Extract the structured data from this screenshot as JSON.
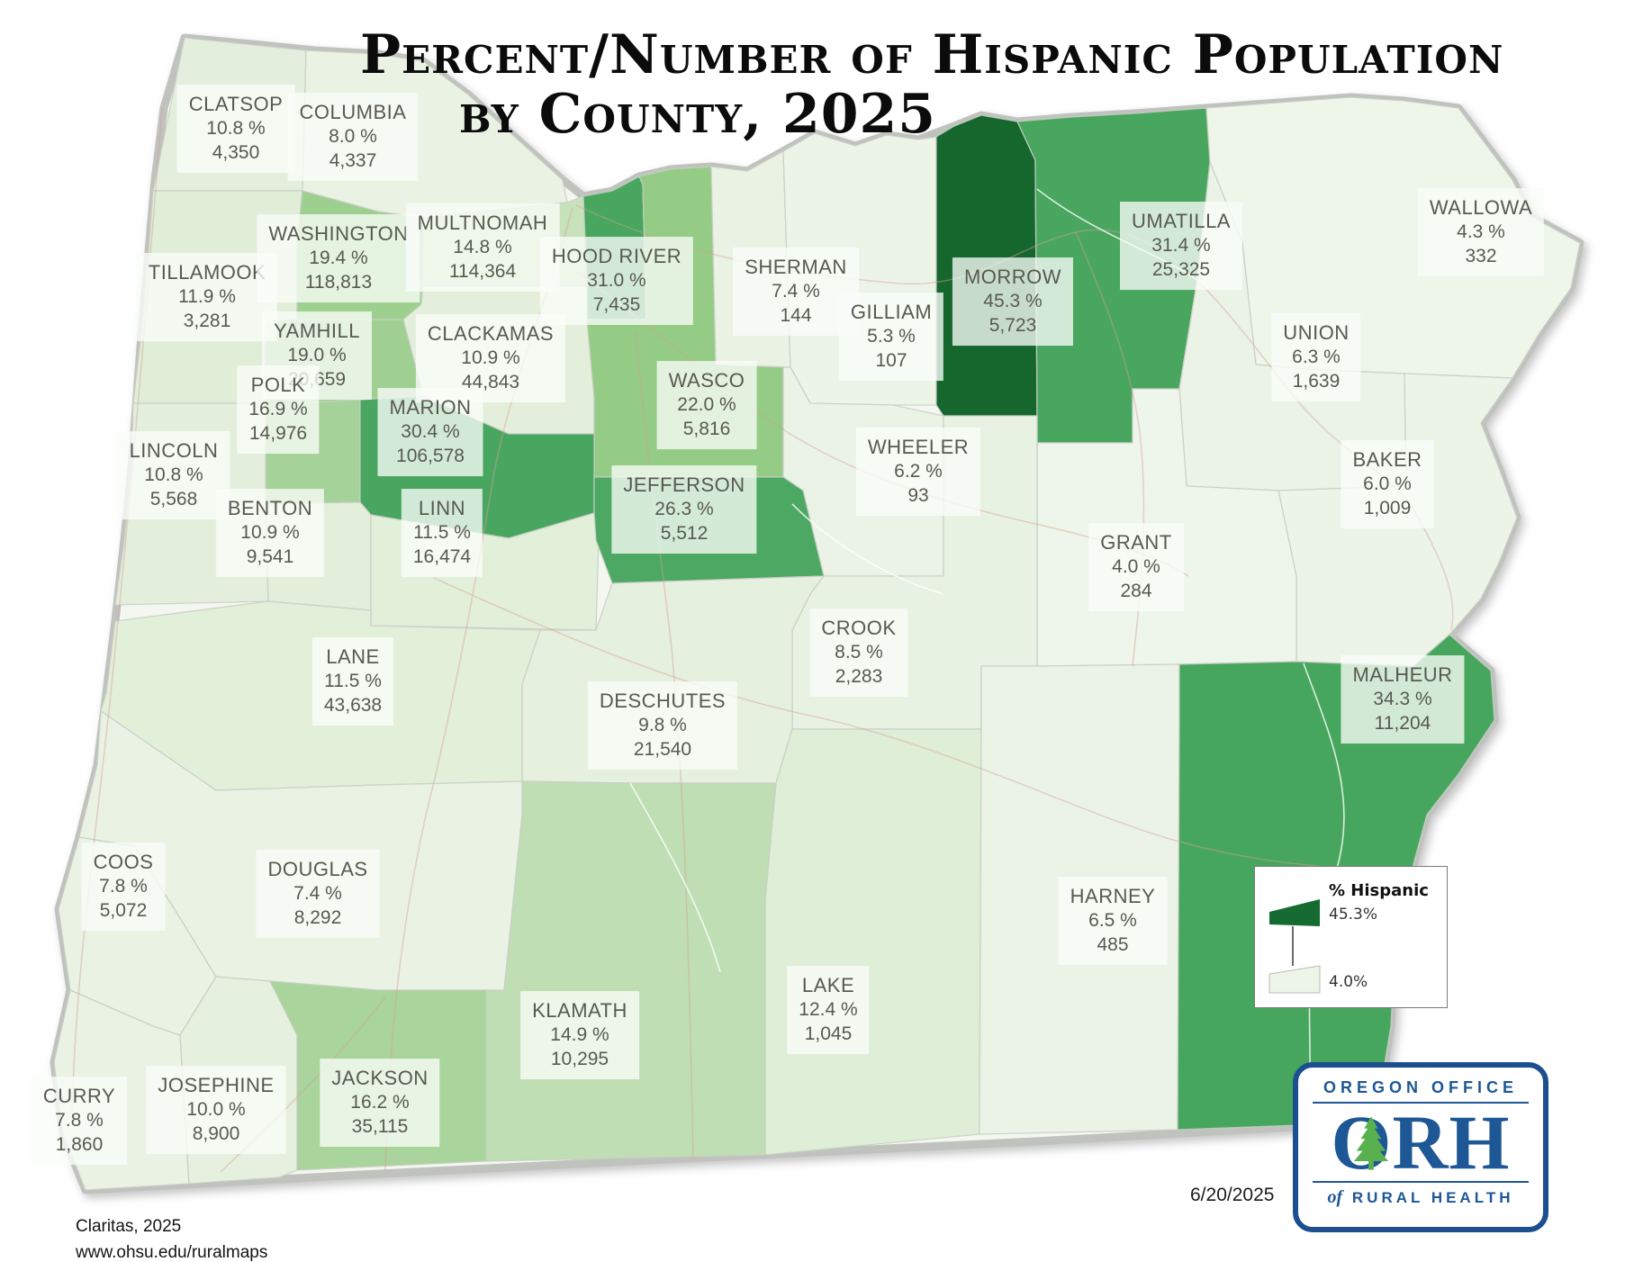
{
  "title": {
    "line1": "Percent/Number of Hispanic Population",
    "line2": "by County, 2025"
  },
  "legend": {
    "title": "% Hispanic",
    "max_label": "45.3%",
    "min_label": "4.0%",
    "max_color": "#156b31",
    "min_color": "#edf5e9"
  },
  "date": "6/20/2025",
  "credits": {
    "line1": "Claritas, 2025",
    "line2": "www.ohsu.edu/ruralmaps"
  },
  "logo": {
    "top": "OREGON OFFICE",
    "acronym": "ORH",
    "bottom_of": "of",
    "bottom_rest": "RURAL HEALTH",
    "blue": "#1d5796",
    "green": "#58b14e"
  },
  "colors": {
    "scale_stops": [
      [
        4,
        "#eef5ea"
      ],
      [
        8,
        "#e9f2e3"
      ],
      [
        11,
        "#e3efdb"
      ],
      [
        12.4,
        "#dfeed6"
      ],
      [
        14.8,
        "#c8e2bc"
      ],
      [
        15.1,
        "#aed7a1"
      ],
      [
        17,
        "#a5d297"
      ],
      [
        19.5,
        "#9dcf8f"
      ],
      [
        22,
        "#94cb85"
      ],
      [
        25.5,
        "#62b26d"
      ],
      [
        26.3,
        "#4ca862"
      ],
      [
        31.4,
        "#48a65f"
      ],
      [
        34.3,
        "#47a65e"
      ],
      [
        45.3,
        "#15672e"
      ]
    ],
    "state_border": "#bfc2bd",
    "county_border": "#c9cec5",
    "label_bg": "rgba(250,253,248,0.78)",
    "label_text": "#585a50",
    "road": "#d79f96"
  },
  "counties": [
    {
      "id": "clatsop",
      "name": "CLATSOP",
      "pct": "10.8 %",
      "pop": "4,350",
      "value": 10.8
    },
    {
      "id": "columbia",
      "name": "COLUMBIA",
      "pct": "8.0 %",
      "pop": "4,337",
      "value": 8.0
    },
    {
      "id": "tillamook",
      "name": "TILLAMOOK",
      "pct": "11.9 %",
      "pop": "3,281",
      "value": 11.9
    },
    {
      "id": "washington",
      "name": "WASHINGTON",
      "pct": "19.4 %",
      "pop": "118,813",
      "value": 19.4
    },
    {
      "id": "multnomah",
      "name": "MULTNOMAH",
      "pct": "14.8 %",
      "pop": "114,364",
      "value": 14.8
    },
    {
      "id": "hood_river",
      "name": "HOOD RIVER",
      "pct": "31.0 %",
      "pop": "7,435",
      "value": 31.0
    },
    {
      "id": "clackamas",
      "name": "CLACKAMAS",
      "pct": "10.9 %",
      "pop": "44,843",
      "value": 10.9
    },
    {
      "id": "yamhill",
      "name": "YAMHILL",
      "pct": "19.0 %",
      "pop": "20,659",
      "value": 19.0
    },
    {
      "id": "wasco",
      "name": "WASCO",
      "pct": "22.0 %",
      "pop": "5,816",
      "value": 22.0
    },
    {
      "id": "sherman",
      "name": "SHERMAN",
      "pct": "7.4 %",
      "pop": "144",
      "value": 7.4
    },
    {
      "id": "gilliam",
      "name": "GILLIAM",
      "pct": "5.3 %",
      "pop": "107",
      "value": 5.3
    },
    {
      "id": "morrow",
      "name": "MORROW",
      "pct": "45.3 %",
      "pop": "5,723",
      "value": 45.3
    },
    {
      "id": "umatilla",
      "name": "UMATILLA",
      "pct": "31.4 %",
      "pop": "25,325",
      "value": 31.4
    },
    {
      "id": "wallowa",
      "name": "WALLOWA",
      "pct": "4.3 %",
      "pop": "332",
      "value": 4.3
    },
    {
      "id": "union",
      "name": "UNION",
      "pct": "6.3 %",
      "pop": "1,639",
      "value": 6.3
    },
    {
      "id": "baker",
      "name": "BAKER",
      "pct": "6.0 %",
      "pop": "1,009",
      "value": 6.0
    },
    {
      "id": "grant",
      "name": "GRANT",
      "pct": "4.0 %",
      "pop": "284",
      "value": 4.0
    },
    {
      "id": "wheeler",
      "name": "WHEELER",
      "pct": "6.2 %",
      "pop": "93",
      "value": 6.2
    },
    {
      "id": "polk",
      "name": "POLK",
      "pct": "16.9 %",
      "pop": "14,976",
      "value": 16.9
    },
    {
      "id": "marion",
      "name": "MARION",
      "pct": "30.4 %",
      "pop": "106,578",
      "value": 30.4
    },
    {
      "id": "lincoln",
      "name": "LINCOLN",
      "pct": "10.8 %",
      "pop": "5,568",
      "value": 10.8
    },
    {
      "id": "benton",
      "name": "BENTON",
      "pct": "10.9 %",
      "pop": "9,541",
      "value": 10.9
    },
    {
      "id": "linn",
      "name": "LINN",
      "pct": "11.5 %",
      "pop": "16,474",
      "value": 11.5
    },
    {
      "id": "jefferson",
      "name": "JEFFERSON",
      "pct": "26.3 %",
      "pop": "5,512",
      "value": 26.3
    },
    {
      "id": "crook",
      "name": "CROOK",
      "pct": "8.5 %",
      "pop": "2,283",
      "value": 8.5
    },
    {
      "id": "deschutes",
      "name": "DESCHUTES",
      "pct": "9.8 %",
      "pop": "21,540",
      "value": 9.8
    },
    {
      "id": "lane",
      "name": "LANE",
      "pct": "11.5 %",
      "pop": "43,638",
      "value": 11.5
    },
    {
      "id": "coos",
      "name": "COOS",
      "pct": "7.8 %",
      "pop": "5,072",
      "value": 7.8
    },
    {
      "id": "douglas",
      "name": "DOUGLAS",
      "pct": "7.4 %",
      "pop": "8,292",
      "value": 7.4
    },
    {
      "id": "curry",
      "name": "CURRY",
      "pct": "7.8 %",
      "pop": "1,860",
      "value": 7.8
    },
    {
      "id": "josephine",
      "name": "JOSEPHINE",
      "pct": "10.0 %",
      "pop": "8,900",
      "value": 10.0
    },
    {
      "id": "jackson",
      "name": "JACKSON",
      "pct": "16.2 %",
      "pop": "35,115",
      "value": 16.2
    },
    {
      "id": "klamath",
      "name": "KLAMATH",
      "pct": "14.9 %",
      "pop": "10,295",
      "value": 14.9
    },
    {
      "id": "lake",
      "name": "LAKE",
      "pct": "12.4 %",
      "pop": "1,045",
      "value": 12.4
    },
    {
      "id": "harney",
      "name": "HARNEY",
      "pct": "6.5 %",
      "pop": "485",
      "value": 6.5
    },
    {
      "id": "malheur",
      "name": "MALHEUR",
      "pct": "34.3 %",
      "pop": "11,204",
      "value": 34.3
    }
  ]
}
